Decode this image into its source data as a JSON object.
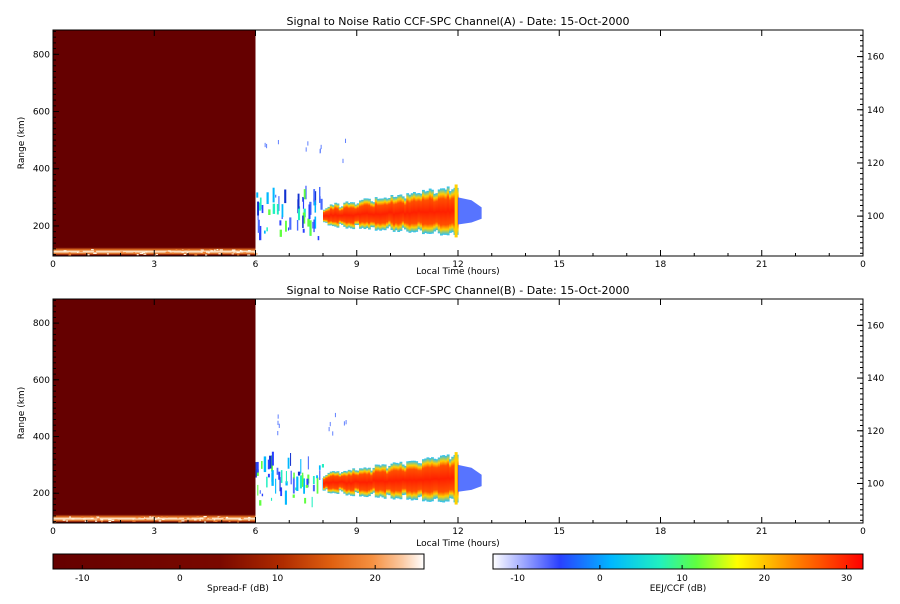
{
  "panels": [
    {
      "title": "Signal to Noise Ratio CCF-SPC Channel(A) - Date: 15-Oct-2000",
      "xlabel": "Local Time (hours)",
      "ylabel": "Range (km)",
      "x_ticks": [
        "0",
        "3",
        "6",
        "9",
        "12",
        "15",
        "18",
        "21",
        "0"
      ],
      "y_ticks_left": [
        "200",
        "400",
        "600",
        "800"
      ],
      "y_ticks_right": [
        "100",
        "120",
        "140",
        "160"
      ]
    },
    {
      "title": "Signal to Noise Ratio CCF-SPC Channel(B) - Date: 15-Oct-2000",
      "xlabel": "Local Time (hours)",
      "ylabel": "Range (km)",
      "x_ticks": [
        "0",
        "3",
        "6",
        "9",
        "12",
        "15",
        "18",
        "21",
        "0"
      ],
      "y_ticks_left": [
        "200",
        "400",
        "600",
        "800"
      ],
      "y_ticks_right": [
        "100",
        "120",
        "140",
        "160"
      ]
    }
  ],
  "colorbars": [
    {
      "label": "Spread-F (dB)",
      "ticks": [
        "-10",
        "0",
        "10",
        "20"
      ],
      "range": [
        -13,
        25
      ],
      "colors": [
        "#650000",
        "#7a0a00",
        "#a02000",
        "#d04a08",
        "#f08028",
        "#fbb080",
        "#ffffff"
      ]
    },
    {
      "label": "EEJ/CCF (dB)",
      "ticks": [
        "-10",
        "0",
        "10",
        "20",
        "30"
      ],
      "range": [
        -13,
        32
      ],
      "colors": [
        "#ffffff",
        "#2040ff",
        "#00d0ff",
        "#30ff80",
        "#ffff00",
        "#ff8000",
        "#ff0000"
      ]
    }
  ],
  "chart_data": [
    {
      "type": "heatmap",
      "title": "Signal to Noise Ratio CCF-SPC Channel(A) - Date: 15-Oct-2000",
      "xlabel": "Local Time (hours)",
      "ylabel": "Range (km)",
      "xlim": [
        0,
        24
      ],
      "ylim_left": [
        95,
        885
      ],
      "ylim_right": [
        85,
        170
      ],
      "regions": [
        {
          "name": "Spread-F",
          "x": [
            0,
            6
          ],
          "y_km": [
            95,
            885
          ],
          "snr_db": -13,
          "note": "saturated band near 100-120 km"
        },
        {
          "name": "EEJ/CCF scattered echoes",
          "x": [
            6,
            8
          ],
          "y_km": [
            140,
            500
          ]
        },
        {
          "name": "EEJ/CCF main echo",
          "x": [
            8,
            12
          ],
          "y_km": [
            155,
            345
          ],
          "peak_snr_db": 32
        },
        {
          "name": "EEJ/CCF weak tail",
          "x": [
            12,
            12.7
          ],
          "y_km": [
            210,
            300
          ]
        }
      ]
    },
    {
      "type": "heatmap",
      "title": "Signal to Noise Ratio CCF-SPC Channel(B) - Date: 15-Oct-2000",
      "xlabel": "Local Time (hours)",
      "ylabel": "Range (km)",
      "xlim": [
        0,
        24
      ],
      "ylim_left": [
        95,
        885
      ],
      "ylim_right": [
        85,
        170
      ],
      "regions": [
        {
          "name": "Spread-F",
          "x": [
            0,
            6
          ],
          "y_km": [
            95,
            885
          ],
          "snr_db": -13,
          "note": "saturated band near 100-120 km"
        },
        {
          "name": "EEJ/CCF scattered echoes",
          "x": [
            6,
            8
          ],
          "y_km": [
            140,
            500
          ]
        },
        {
          "name": "EEJ/CCF main echo",
          "x": [
            8,
            12
          ],
          "y_km": [
            155,
            345
          ],
          "peak_snr_db": 32
        },
        {
          "name": "EEJ/CCF weak tail",
          "x": [
            12,
            12.7
          ],
          "y_km": [
            210,
            300
          ]
        }
      ]
    }
  ]
}
